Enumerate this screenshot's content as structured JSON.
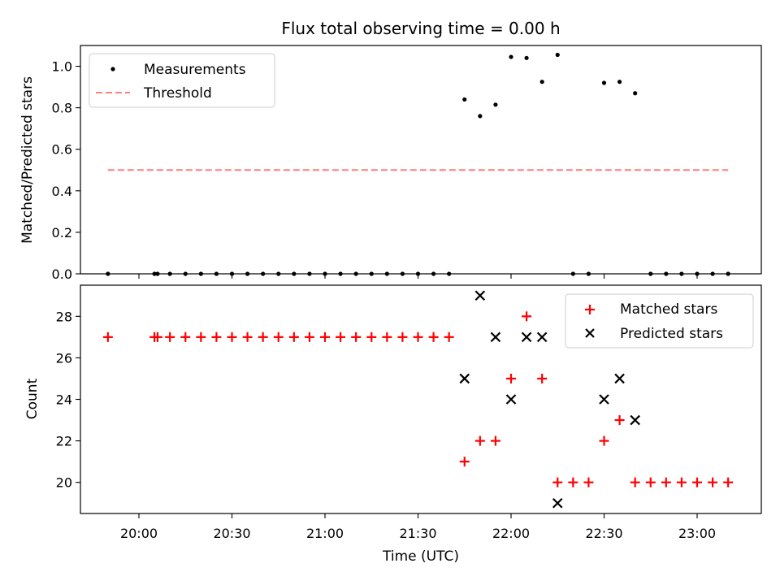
{
  "chart_data": [
    {
      "type": "scatter",
      "title": "Flux total observing time = 0.00 h",
      "ylabel": "Matched/Predicted stars",
      "xlabel": "",
      "ylim": [
        0,
        1.1
      ],
      "yticks": [
        "0.0",
        "0.2",
        "0.4",
        "0.6",
        "0.8",
        "1.0"
      ],
      "legend_position": "top-left",
      "series": [
        {
          "name": "Measurements",
          "marker": "dot",
          "color": "#000000",
          "x": [
            "19:50",
            "20:05",
            "20:06",
            "20:10",
            "20:15",
            "20:20",
            "20:25",
            "20:30",
            "20:35",
            "20:40",
            "20:45",
            "20:50",
            "20:55",
            "21:00",
            "21:05",
            "21:10",
            "21:15",
            "21:20",
            "21:25",
            "21:30",
            "21:35",
            "21:40",
            "21:45",
            "21:50",
            "21:55",
            "22:00",
            "22:05",
            "22:10",
            "22:15",
            "22:20",
            "22:25",
            "22:30",
            "22:35",
            "22:40",
            "22:45",
            "22:50",
            "22:55",
            "23:00",
            "23:05",
            "23:10"
          ],
          "y": [
            0,
            0,
            0,
            0,
            0,
            0,
            0,
            0,
            0,
            0,
            0,
            0,
            0,
            0,
            0,
            0,
            0,
            0,
            0,
            0,
            0,
            0,
            0.84,
            0.76,
            0.815,
            1.045,
            1.04,
            0.925,
            1.055,
            0,
            0,
            0.92,
            0.925,
            0.87,
            0,
            0,
            0,
            0,
            0,
            0
          ]
        },
        {
          "name": "Threshold",
          "style": "dashed",
          "color": "#ff7f7f",
          "x": [
            "19:50",
            "23:10"
          ],
          "y": [
            0.5,
            0.5
          ]
        }
      ]
    },
    {
      "type": "scatter",
      "title": "",
      "ylabel": "Count",
      "xlabel": "Time (UTC)",
      "ylim": [
        18.5,
        29.5
      ],
      "yticks": [
        "20",
        "22",
        "24",
        "26",
        "28"
      ],
      "xticks": [
        "20:00",
        "20:30",
        "21:00",
        "21:30",
        "22:00",
        "22:30",
        "23:00"
      ],
      "legend_position": "top-right",
      "series": [
        {
          "name": "Matched stars",
          "marker": "plus",
          "color": "#ff0000",
          "x": [
            "19:50",
            "20:05",
            "20:06",
            "20:10",
            "20:15",
            "20:20",
            "20:25",
            "20:30",
            "20:35",
            "20:40",
            "20:45",
            "20:50",
            "20:55",
            "21:00",
            "21:05",
            "21:10",
            "21:15",
            "21:20",
            "21:25",
            "21:30",
            "21:35",
            "21:40",
            "21:45",
            "21:50",
            "21:55",
            "22:00",
            "22:05",
            "22:10",
            "22:15",
            "22:20",
            "22:25",
            "22:30",
            "22:35",
            "22:40",
            "22:45",
            "22:50",
            "22:55",
            "23:00",
            "23:05",
            "23:10"
          ],
          "y": [
            27,
            27,
            27,
            27,
            27,
            27,
            27,
            27,
            27,
            27,
            27,
            27,
            27,
            27,
            27,
            27,
            27,
            27,
            27,
            27,
            27,
            27,
            21,
            22,
            22,
            25,
            28,
            25,
            20,
            20,
            20,
            22,
            23,
            20,
            20,
            20,
            20,
            20,
            20,
            20
          ]
        },
        {
          "name": "Predicted stars",
          "marker": "x",
          "color": "#000000",
          "x": [
            "21:45",
            "21:50",
            "21:55",
            "22:00",
            "22:05",
            "22:10",
            "22:15",
            "22:30",
            "22:35",
            "22:40"
          ],
          "y": [
            25,
            29,
            27,
            24,
            27,
            27,
            19,
            24,
            25,
            23
          ]
        }
      ]
    }
  ]
}
